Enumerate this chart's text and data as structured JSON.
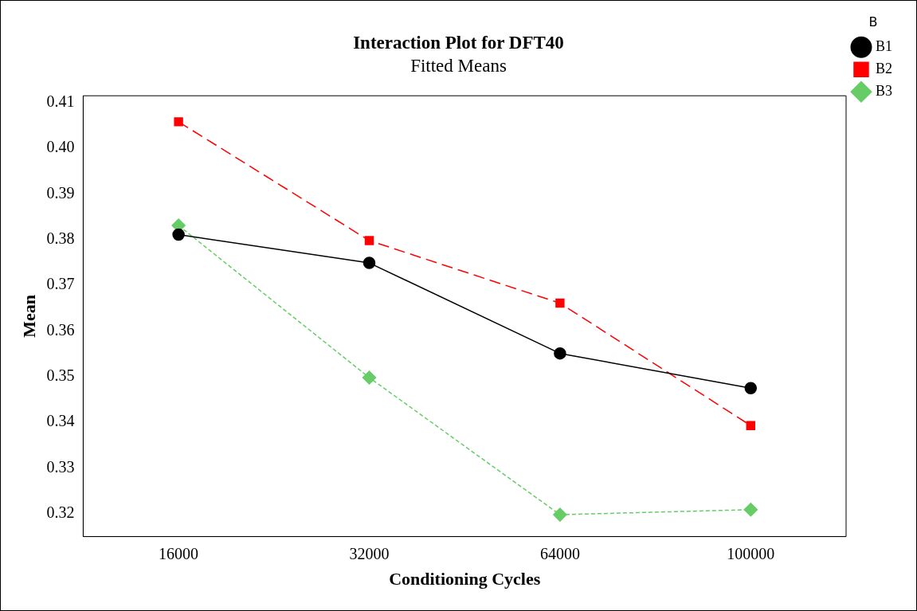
{
  "chart_data": {
    "type": "line",
    "title": "Interaction Plot for DFT40",
    "subtitle": "Fitted Means",
    "xlabel": "Conditioning Cycles",
    "ylabel": "Mean",
    "legend_title": "B",
    "legend": "top right",
    "categories": [
      "16000",
      "32000",
      "64000",
      "100000"
    ],
    "series": [
      {
        "name": "B1",
        "color": "#000000",
        "marker": "circle",
        "line_style": "solid",
        "values": [
          0.3811,
          0.3749,
          0.3551,
          0.3475
        ]
      },
      {
        "name": "B2",
        "color": "#ff0000",
        "marker": "square",
        "line_style": "dashed",
        "values": [
          0.4058,
          0.3798,
          0.3661,
          0.3393
        ]
      },
      {
        "name": "B3",
        "color": "#66cc66",
        "marker": "diamond",
        "line_style": "dotted",
        "values": [
          0.3831,
          0.3498,
          0.3198,
          0.3209
        ]
      }
    ],
    "ylim": [
      0.315,
      0.4115
    ],
    "yticks": [
      0.32,
      0.33,
      0.34,
      0.35,
      0.36,
      0.37,
      0.38,
      0.39,
      {
        "value": 0.4,
        "label": "0.40"
      },
      0.41
    ],
    "grid": false
  }
}
